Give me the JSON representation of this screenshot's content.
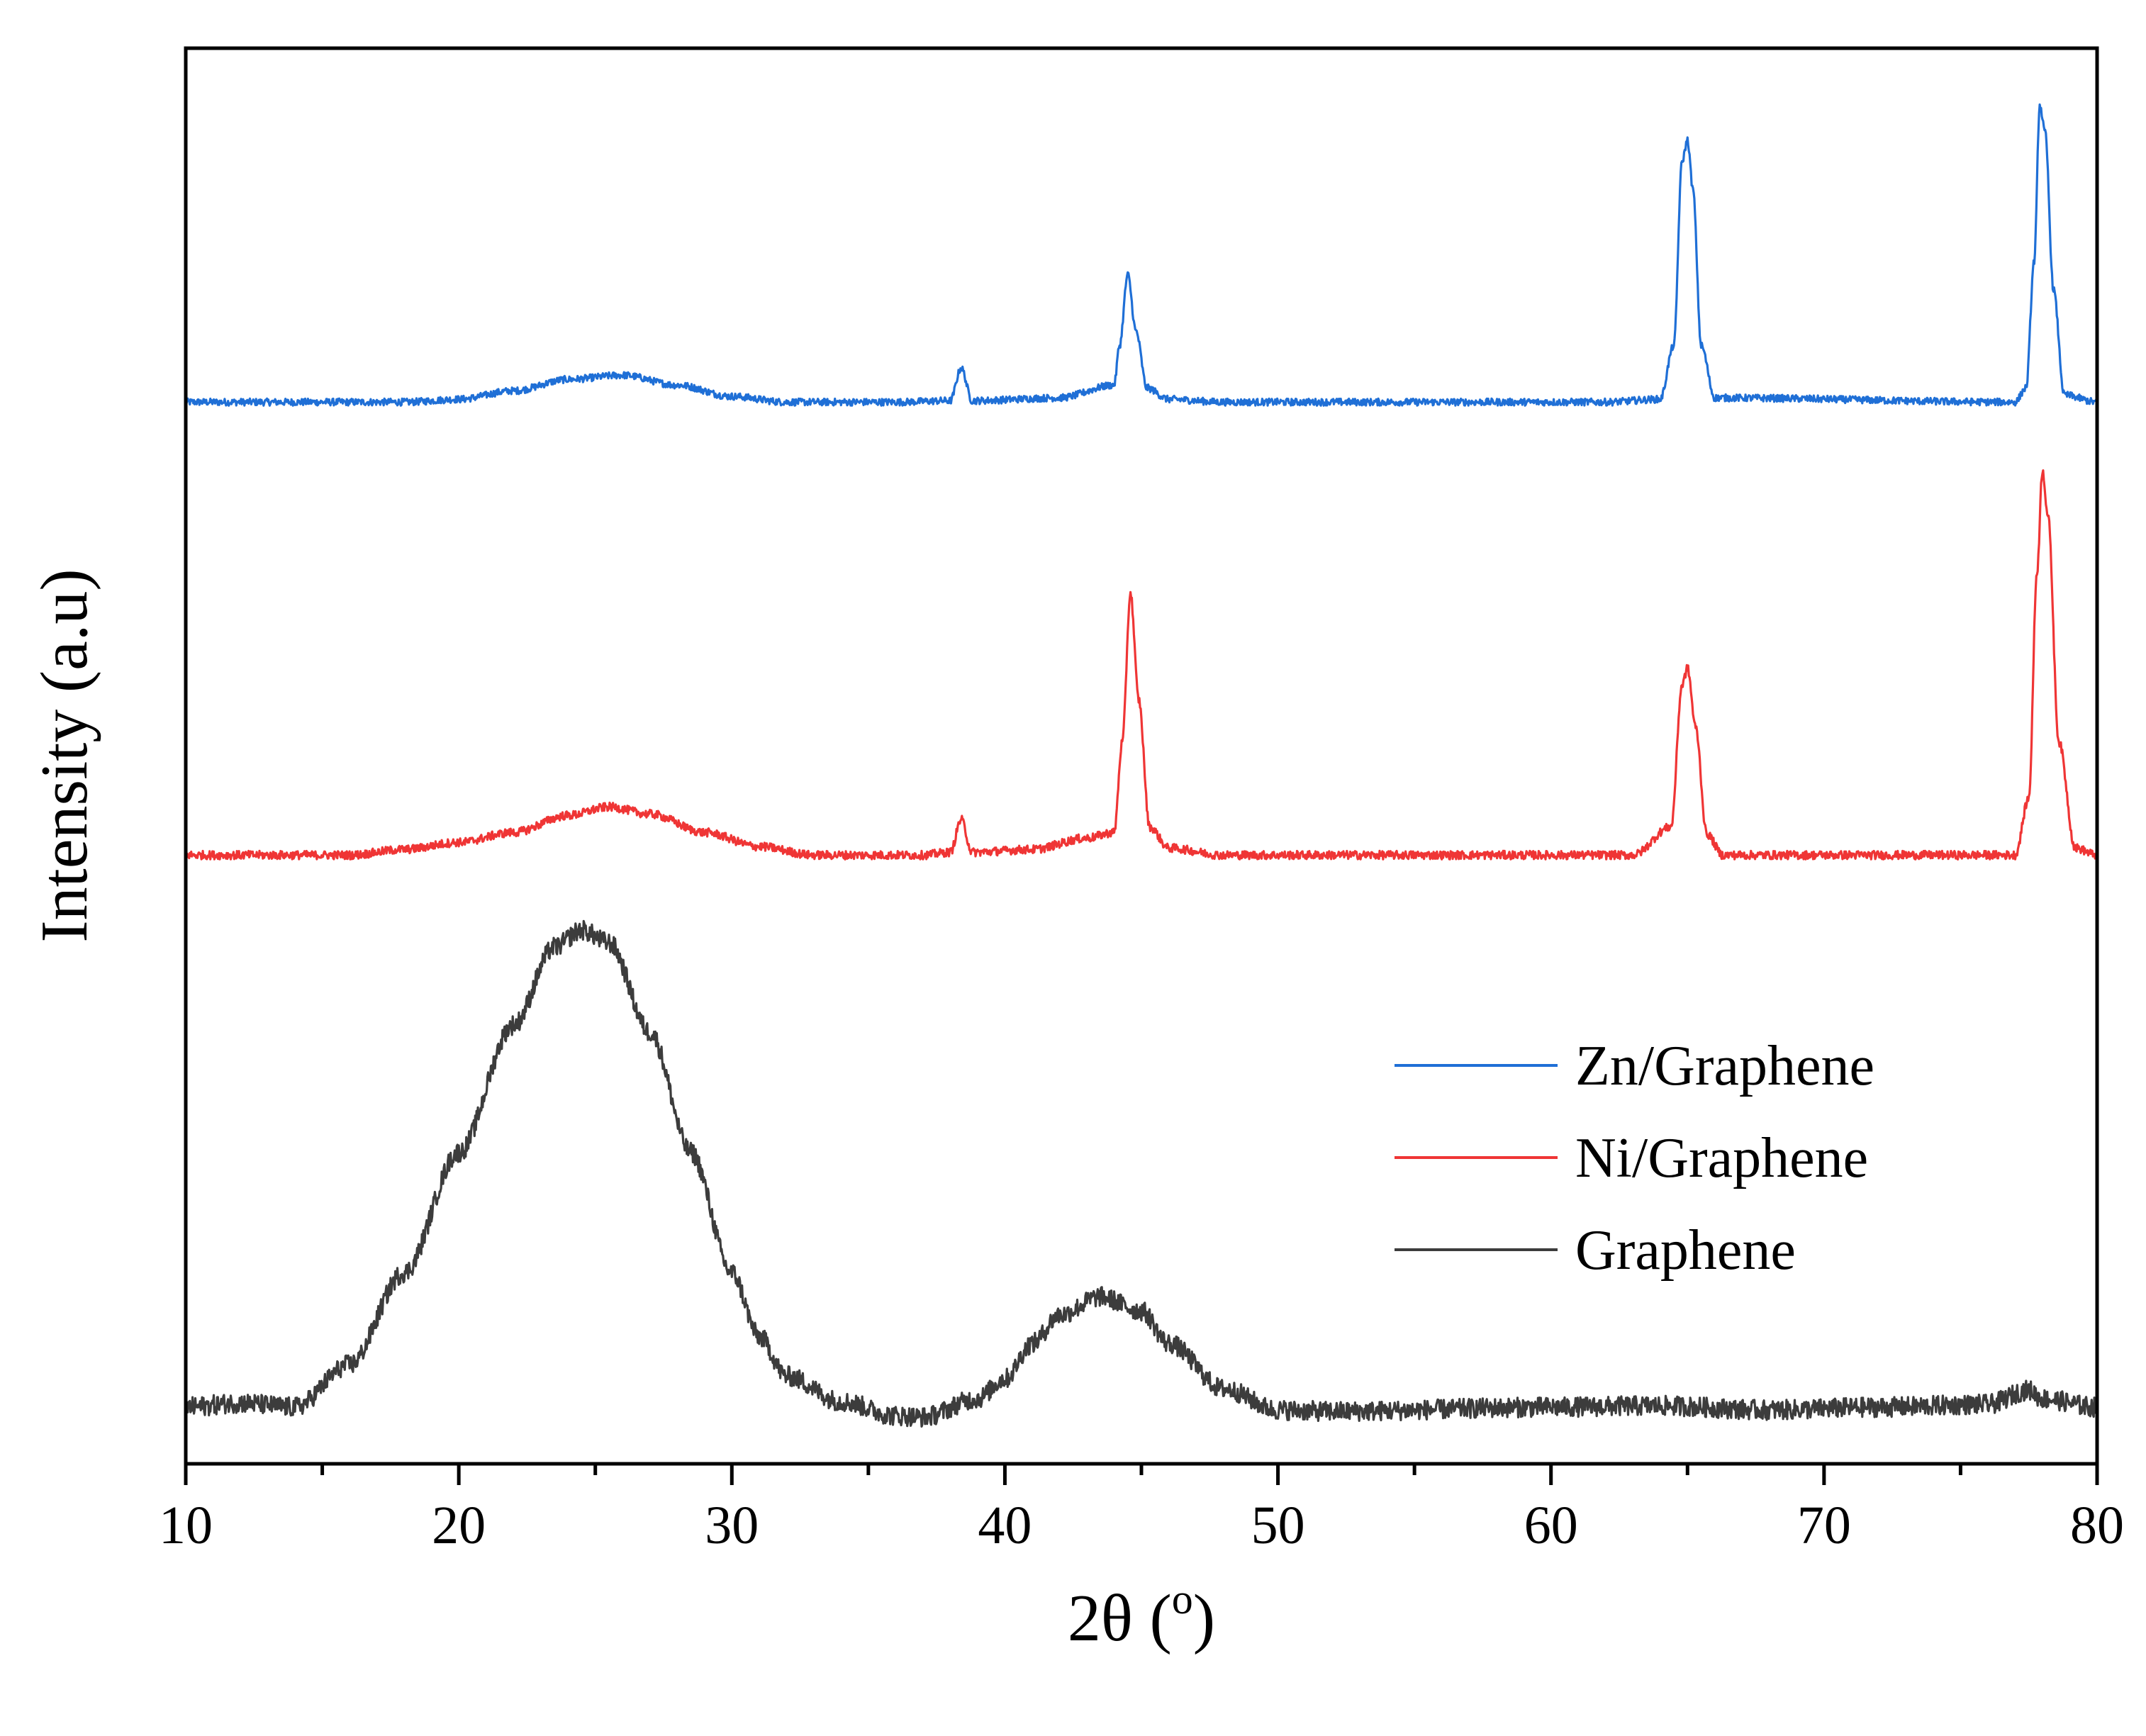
{
  "chart_data": {
    "type": "line",
    "title": "",
    "xlabel": "2θ (o)",
    "xlabel_parts": {
      "main": "2θ (",
      "superscript": "o",
      "close": ")"
    },
    "ylabel": "Intensity (a.u)",
    "xlim": [
      10,
      80
    ],
    "ylim": [
      0,
      100
    ],
    "x_ticks": [
      10,
      20,
      30,
      40,
      50,
      60,
      70,
      80
    ],
    "x_tick_labels": [
      "10",
      "20",
      "30",
      "40",
      "50",
      "60",
      "70",
      "80"
    ],
    "x_minor_ticks": [
      15,
      25,
      35,
      45,
      55,
      65,
      75
    ],
    "y_ticks_shown": false,
    "grid": false,
    "legend_position": "lower-right",
    "legend_order": [
      "Zn/Graphene",
      "Ni/Graphene",
      "Graphene"
    ],
    "series": [
      {
        "name": "Zn/Graphene",
        "color": "#1f6fd6",
        "offset": 75,
        "noise": 0.25,
        "points": [
          [
            10,
            0
          ],
          [
            18,
            0
          ],
          [
            20,
            0.2
          ],
          [
            22,
            0.8
          ],
          [
            24,
            1.6
          ],
          [
            26,
            1.9
          ],
          [
            28,
            1.2
          ],
          [
            30,
            0.4
          ],
          [
            32,
            0
          ],
          [
            36,
            0
          ],
          [
            38,
            0.1
          ],
          [
            38.4,
            2.4
          ],
          [
            38.8,
            0.1
          ],
          [
            42,
            0.3
          ],
          [
            44,
            1.2
          ],
          [
            44.2,
            4
          ],
          [
            44.5,
            9
          ],
          [
            44.8,
            5
          ],
          [
            45.2,
            1
          ],
          [
            46,
            0.2
          ],
          [
            48,
            0
          ],
          [
            62,
            0
          ],
          [
            64,
            0.2
          ],
          [
            64.5,
            4
          ],
          [
            64.8,
            17
          ],
          [
            65,
            18.5
          ],
          [
            65.2,
            15
          ],
          [
            65.5,
            4
          ],
          [
            66,
            0.3
          ],
          [
            77,
            0
          ],
          [
            77.4,
            1
          ],
          [
            77.7,
            10
          ],
          [
            77.9,
            21
          ],
          [
            78.1,
            19
          ],
          [
            78.4,
            8
          ],
          [
            78.8,
            0.5
          ],
          [
            80,
            0
          ]
        ]
      },
      {
        "name": "Ni/Graphene",
        "color": "#ef3535",
        "offset": 43,
        "noise": 0.3,
        "points": [
          [
            10,
            0
          ],
          [
            16,
            0
          ],
          [
            18,
            0.4
          ],
          [
            20,
            0.9
          ],
          [
            22,
            1.6
          ],
          [
            24,
            2.8
          ],
          [
            25.5,
            3.4
          ],
          [
            27,
            2.9
          ],
          [
            29,
            1.6
          ],
          [
            31,
            0.6
          ],
          [
            33,
            0
          ],
          [
            37,
            0
          ],
          [
            38,
            0.2
          ],
          [
            38.4,
            2.5
          ],
          [
            38.8,
            0.2
          ],
          [
            41,
            0.4
          ],
          [
            43,
            1.2
          ],
          [
            44,
            1.6
          ],
          [
            44.3,
            8
          ],
          [
            44.6,
            18.5
          ],
          [
            44.9,
            11
          ],
          [
            45.3,
            2
          ],
          [
            46,
            0.5
          ],
          [
            48,
            0
          ],
          [
            63,
            0
          ],
          [
            64.4,
            2
          ],
          [
            64.8,
            12
          ],
          [
            65,
            13.2
          ],
          [
            65.3,
            9
          ],
          [
            65.7,
            1.5
          ],
          [
            66.3,
            0
          ],
          [
            77,
            0
          ],
          [
            77.5,
            4
          ],
          [
            77.8,
            20
          ],
          [
            78,
            27.2
          ],
          [
            78.2,
            24
          ],
          [
            78.6,
            8
          ],
          [
            79.2,
            0.5
          ],
          [
            80,
            0
          ]
        ]
      },
      {
        "name": "Graphene",
        "color": "#3c3c3c",
        "offset": 4,
        "noise": 0.7,
        "points": [
          [
            10,
            0
          ],
          [
            12,
            0.3
          ],
          [
            14,
            0
          ],
          [
            16,
            3
          ],
          [
            18,
            9.5
          ],
          [
            20,
            18
          ],
          [
            22,
            27
          ],
          [
            23.5,
            32.5
          ],
          [
            24.5,
            33.7
          ],
          [
            25.5,
            32.8
          ],
          [
            27,
            26.5
          ],
          [
            28.5,
            18
          ],
          [
            30,
            9.5
          ],
          [
            31,
            5
          ],
          [
            32,
            2.2
          ],
          [
            34,
            0.4
          ],
          [
            36,
            -0.6
          ],
          [
            37,
            -0.7
          ],
          [
            39,
            0.6
          ],
          [
            40,
            2
          ],
          [
            41,
            4.5
          ],
          [
            42,
            6.5
          ],
          [
            43.5,
            7.8
          ],
          [
            45,
            6.8
          ],
          [
            46,
            4.5
          ],
          [
            48,
            1.3
          ],
          [
            50,
            -0.2
          ],
          [
            52,
            -0.3
          ],
          [
            60,
            0
          ],
          [
            64,
            0.1
          ],
          [
            68,
            -0.2
          ],
          [
            72,
            0
          ],
          [
            76,
            0.2
          ],
          [
            77.5,
            1.2
          ],
          [
            78,
            0.6
          ],
          [
            80,
            0
          ]
        ]
      }
    ]
  }
}
